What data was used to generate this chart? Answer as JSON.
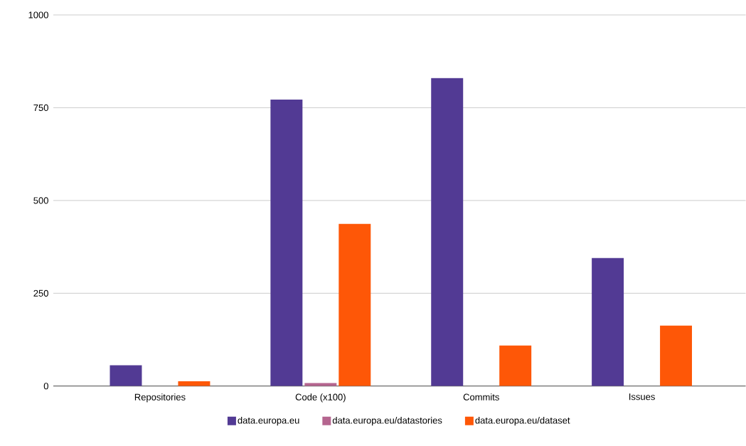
{
  "chart_data": {
    "type": "bar",
    "categories": [
      "Repositories",
      "Code (x100)",
      "Commits",
      "Issues"
    ],
    "series": [
      {
        "name": "data.europa.eu",
        "color": "#523a94",
        "values": [
          56,
          772,
          830,
          345
        ]
      },
      {
        "name": "data.europa.eu/datastories",
        "color": "#b5658f",
        "values": [
          0,
          8,
          0,
          0
        ]
      },
      {
        "name": "data.europa.eu/dataset",
        "color": "#fe5707",
        "values": [
          13,
          437,
          109,
          163
        ]
      }
    ],
    "ylim": [
      0,
      1000
    ],
    "yticks": [
      0,
      250,
      500,
      750,
      1000
    ],
    "grid": "y",
    "legend": "bottom"
  }
}
